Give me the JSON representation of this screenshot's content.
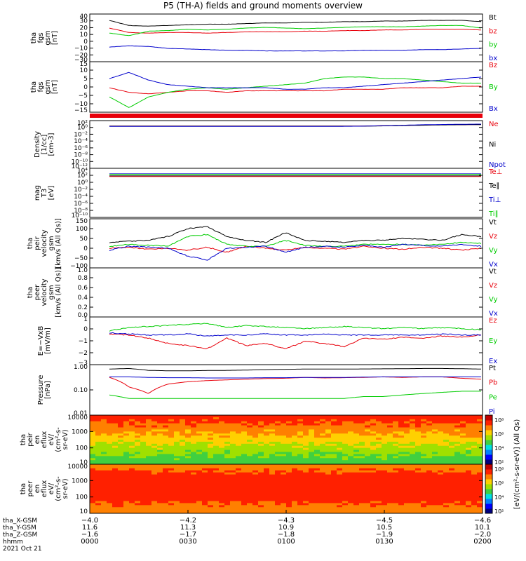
{
  "title": "P5 (TH-A) fields and ground moments overview",
  "colors": {
    "black": "#000000",
    "red": "#e8000b",
    "green": "#00cc00",
    "blue": "#0000cc"
  },
  "chart_data": [
    {
      "type": "line",
      "panel": "tha_fgs_gsm",
      "ylabel": [
        "tha",
        "fgs",
        "gsm",
        "[nT]"
      ],
      "ylim": [
        -35,
        40
      ],
      "yticks": [
        "40",
        "30",
        "20",
        "10",
        "0",
        "−10",
        "−20",
        "−30"
      ],
      "series": [
        {
          "name": "Bt",
          "color": "black",
          "values": [
            30,
            22,
            21,
            22,
            23,
            24,
            24,
            25,
            26,
            26,
            27,
            27,
            28,
            28,
            29,
            29,
            30,
            30,
            30,
            28
          ]
        },
        {
          "name": "bz",
          "color": "red",
          "values": [
            18,
            11,
            10,
            11,
            11,
            10,
            11,
            12,
            12,
            12,
            13,
            13,
            14,
            14,
            15,
            15,
            16,
            16,
            16,
            15
          ]
        },
        {
          "name": "by",
          "color": "green",
          "values": [
            10,
            6,
            13,
            14,
            16,
            15,
            16,
            18,
            19,
            18,
            17,
            18,
            19,
            20,
            20,
            20,
            21,
            22,
            22,
            18
          ]
        },
        {
          "name": "bx",
          "color": "blue",
          "values": [
            -12,
            -10,
            -11,
            -14,
            -15,
            -16,
            -17,
            -17,
            -18,
            -18,
            -18,
            -18,
            -18,
            -17,
            -17,
            -17,
            -16,
            -16,
            -15,
            -14
          ]
        }
      ]
    },
    {
      "type": "line",
      "panel": "tha_fgs_gsm_2",
      "ylabel": [
        "tha",
        "fgs",
        "gsm",
        "[nT]"
      ],
      "ylim": [
        -18,
        15
      ],
      "yticks": [
        "15",
        "10",
        "5",
        "0",
        "−5",
        "−10",
        "−15"
      ],
      "series": [
        {
          "name": "Bz",
          "color": "red",
          "values": [
            -2,
            -5,
            -6,
            -5,
            -4,
            -4,
            -5,
            -4,
            -4,
            -4,
            -4,
            -4,
            -3,
            -3,
            -3,
            -2,
            -2,
            -2,
            -1,
            -1
          ]
        },
        {
          "name": "By",
          "color": "green",
          "values": [
            -8,
            -15,
            -8,
            -5,
            -3,
            -2,
            -3,
            -2,
            -1,
            0,
            1,
            4,
            5,
            5,
            4,
            4,
            3,
            2,
            1,
            1
          ]
        },
        {
          "name": "Bx",
          "color": "blue",
          "values": [
            4,
            8,
            3,
            0,
            -1,
            -2,
            -2,
            -2,
            -2,
            -3,
            -3,
            -2,
            -2,
            -1,
            0,
            1,
            2,
            3,
            4,
            5
          ]
        }
      ]
    },
    {
      "type": "line",
      "panel": "density",
      "ylabel": [
        "Density",
        "[1/cc]",
        "[cm-3]"
      ],
      "log": true,
      "ylim": [
        1e-12,
        1000.0
      ],
      "yticks": [
        "10²",
        "10⁰",
        "10⁻²",
        "10⁻⁴",
        "10⁻⁶",
        "10⁻⁸",
        "10⁻¹⁰",
        "10⁻¹²"
      ],
      "series": [
        {
          "name": "Ne",
          "color": "red",
          "values": [
            20,
            20,
            20,
            20,
            20,
            20,
            20,
            20,
            20,
            20,
            20,
            20,
            20,
            20,
            25,
            30,
            40,
            50,
            55,
            60
          ]
        },
        {
          "name": "Ni",
          "color": "black",
          "values": [
            18,
            18,
            18,
            18,
            18,
            18,
            18,
            18,
            18,
            18,
            18,
            18,
            18,
            18,
            22,
            28,
            35,
            45,
            50,
            55
          ]
        },
        {
          "name": "Npot",
          "color": "blue",
          "values": [
            15,
            15,
            15,
            15,
            15,
            15,
            15,
            15,
            15,
            15,
            15,
            15,
            16,
            18,
            25,
            35,
            50,
            60,
            70,
            80
          ]
        }
      ]
    },
    {
      "type": "line",
      "panel": "temperature",
      "ylabel": [
        "mag",
        "T3",
        "[eV]"
      ],
      "log": true,
      "ylim": [
        1e-10,
        100000.0
      ],
      "yticks": [
        "10⁴",
        "10²",
        "10⁰",
        "10⁻²",
        "10⁻⁴",
        "10⁻⁶",
        "10⁻⁸",
        "10⁻¹⁰"
      ],
      "series": [
        {
          "name": "Te⊥",
          "color": "red",
          "values": [
            300,
            300,
            300,
            300,
            300,
            300,
            300,
            300,
            300,
            300,
            300,
            300,
            300,
            300,
            300,
            300,
            300,
            300,
            300,
            300
          ]
        },
        {
          "name": "Te∥",
          "color": "black",
          "values": [
            500,
            500,
            500,
            500,
            500,
            500,
            500,
            500,
            500,
            500,
            500,
            500,
            500,
            500,
            500,
            500,
            500,
            500,
            500,
            500
          ]
        },
        {
          "name": "Ti⊥",
          "color": "blue",
          "values": [
            2000,
            2000,
            2000,
            2000,
            2000,
            2000,
            2000,
            2000,
            2000,
            2000,
            2000,
            2000,
            2000,
            2000,
            2000,
            2000,
            2000,
            2000,
            2000,
            2000
          ]
        },
        {
          "name": "Ti∥",
          "color": "green",
          "values": [
            1500,
            1500,
            1500,
            1500,
            1500,
            1500,
            1500,
            1500,
            1500,
            1500,
            1500,
            1500,
            1500,
            1500,
            1500,
            1500,
            1500,
            1500,
            1500,
            1500
          ]
        }
      ]
    },
    {
      "type": "line",
      "panel": "tha_peir_velocity_gsm",
      "ylabel": [
        "tha",
        "peir",
        "velocity",
        "gsm",
        "[km/s (All Qs)]"
      ],
      "ylim": [
        -100,
        150
      ],
      "yticks": [
        "150",
        "100",
        "50",
        "0",
        "−50",
        "−100"
      ],
      "series": [
        {
          "name": "Vt",
          "color": "black",
          "values": [
            30,
            35,
            40,
            60,
            100,
            110,
            60,
            40,
            30,
            80,
            40,
            35,
            30,
            40,
            40,
            50,
            45,
            40,
            70,
            60
          ]
        },
        {
          "name": "Vz",
          "color": "red",
          "values": [
            0,
            5,
            -5,
            0,
            -10,
            5,
            -20,
            10,
            0,
            -10,
            5,
            0,
            -5,
            10,
            0,
            -5,
            5,
            0,
            -10,
            0
          ]
        },
        {
          "name": "Vy",
          "color": "green",
          "values": [
            10,
            20,
            15,
            10,
            60,
            70,
            20,
            10,
            10,
            40,
            15,
            10,
            10,
            20,
            20,
            20,
            15,
            20,
            30,
            25
          ]
        },
        {
          "name": "Vx",
          "color": "blue",
          "values": [
            -10,
            10,
            5,
            0,
            -40,
            -60,
            0,
            5,
            10,
            -20,
            5,
            10,
            5,
            15,
            5,
            20,
            15,
            10,
            20,
            10
          ]
        }
      ]
    },
    {
      "type": "line",
      "panel": "tha_peer_velocity_gsm",
      "ylabel": [
        "tha",
        "peer",
        "velocity",
        "gsm",
        "[km/s (All Qs)]"
      ],
      "ylim": [
        0,
        1
      ],
      "yticks": [
        "1.0",
        "0.8",
        "0.6",
        "0.4",
        "0.2",
        "0.0"
      ],
      "series": [
        {
          "name": "Vt",
          "color": "black",
          "values": []
        },
        {
          "name": "Vz",
          "color": "red",
          "values": []
        },
        {
          "name": "Vy",
          "color": "green",
          "values": []
        },
        {
          "name": "Vx",
          "color": "blue",
          "values": []
        }
      ]
    },
    {
      "type": "line",
      "panel": "e_field",
      "ylabel": [
        "E=−VxB",
        "[mV/m]"
      ],
      "ylim": [
        -3,
        1.5
      ],
      "yticks": [
        "1",
        "0",
        "−1",
        "−2",
        "−3"
      ],
      "series": [
        {
          "name": "Ez",
          "color": "red",
          "values": [
            -0.1,
            -0.2,
            -0.5,
            -1.0,
            -1.2,
            -1.5,
            -0.5,
            -1.2,
            -1.0,
            -1.5,
            -0.8,
            -1.0,
            -1.3,
            -0.5,
            -0.6,
            -0.4,
            -0.5,
            -0.3,
            -0.4,
            -0.2
          ]
        },
        {
          "name": "Ey",
          "color": "green",
          "values": [
            0.2,
            0.5,
            0.6,
            0.7,
            0.8,
            0.9,
            0.5,
            0.7,
            0.6,
            0.5,
            0.4,
            0.5,
            0.6,
            0.5,
            0.4,
            0.5,
            0.4,
            0.5,
            0.4,
            0.3
          ]
        },
        {
          "name": "Ex",
          "color": "blue",
          "values": [
            0.0,
            -0.1,
            -0.2,
            -0.2,
            -0.1,
            -0.3,
            -0.2,
            -0.2,
            -0.1,
            -0.2,
            -0.2,
            -0.1,
            -0.2,
            -0.2,
            -0.2,
            -0.2,
            -0.2,
            -0.1,
            -0.2,
            -0.2
          ]
        }
      ]
    },
    {
      "type": "line",
      "panel": "pressure",
      "ylabel": [
        "Pressure",
        "[nPa]"
      ],
      "log": true,
      "ylim": [
        0.01,
        1.3
      ],
      "yticks": [
        "1.00",
        "0.10",
        "0.01"
      ],
      "series": [
        {
          "name": "Pt",
          "color": "black",
          "values": [
            0.85,
            0.9,
            0.75,
            0.72,
            0.72,
            0.74,
            0.75,
            0.77,
            0.8,
            0.83,
            0.85,
            0.85,
            0.85,
            0.86,
            0.87,
            0.88,
            0.9,
            0.9,
            0.88,
            0.85
          ]
        },
        {
          "name": "Pb",
          "color": "red",
          "values": [
            0.38,
            0.15,
            0.08,
            0.2,
            0.25,
            0.28,
            0.3,
            0.32,
            0.34,
            0.35,
            0.38,
            0.36,
            0.37,
            0.38,
            0.4,
            0.38,
            0.4,
            0.4,
            0.35,
            0.32
          ]
        },
        {
          "name": "Pe",
          "color": "green",
          "values": [
            0.07,
            0.05,
            0.05,
            0.05,
            0.05,
            0.05,
            0.05,
            0.05,
            0.05,
            0.05,
            0.05,
            0.05,
            0.05,
            0.06,
            0.06,
            0.07,
            0.08,
            0.09,
            0.1,
            0.1
          ]
        },
        {
          "name": "Pi",
          "color": "blue",
          "values": [
            0.4,
            0.4,
            0.38,
            0.37,
            0.37,
            0.36,
            0.36,
            0.36,
            0.37,
            0.37,
            0.38,
            0.38,
            0.38,
            0.39,
            0.4,
            0.4,
            0.4,
            0.4,
            0.4,
            0.4
          ]
        }
      ]
    },
    {
      "type": "heatmap",
      "panel": "tha_peir_en_eflux",
      "ylabel": [
        "tha",
        "peir",
        "en",
        "eflux",
        "eV/",
        "(cm²-s-",
        "sr-eV)"
      ],
      "log": true,
      "ylim": [
        5,
        25000
      ],
      "yticks": [
        "10000",
        "1000",
        "100",
        "10"
      ]
    },
    {
      "type": "heatmap",
      "panel": "tha_peer_en_eflux",
      "ylabel": [
        "tha",
        "peer",
        "en",
        "eflux",
        "eV/",
        "(cm²-s-",
        "sr-eV)"
      ],
      "log": true,
      "ylim": [
        5,
        15000
      ],
      "yticks": [
        "10000",
        "1000",
        "100",
        "10"
      ]
    }
  ],
  "colorbar": {
    "label": "[eV/(cm²-s-sr-eV)] (All Qs)",
    "ticks": [
      "10⁸",
      "10⁶",
      "10⁴",
      "10²",
      "10⁰"
    ]
  },
  "xaxis": {
    "rows": [
      {
        "label": "tha_X-GSM",
        "values": [
          "−4.0",
          "−4.2",
          "−4.3",
          "−4.5",
          "−4.6"
        ]
      },
      {
        "label": "tha_Y-GSM",
        "values": [
          "11.6",
          "11.3",
          "10.9",
          "10.5",
          "10.1"
        ]
      },
      {
        "label": "tha_Z-GSM",
        "values": [
          "−1.6",
          "−1.7",
          "−1.8",
          "−1.9",
          "−2.0"
        ]
      },
      {
        "label": "hhmm",
        "values": [
          "0000",
          "0030",
          "0100",
          "0130",
          "0200"
        ]
      }
    ],
    "date": "2021 Oct 21"
  }
}
